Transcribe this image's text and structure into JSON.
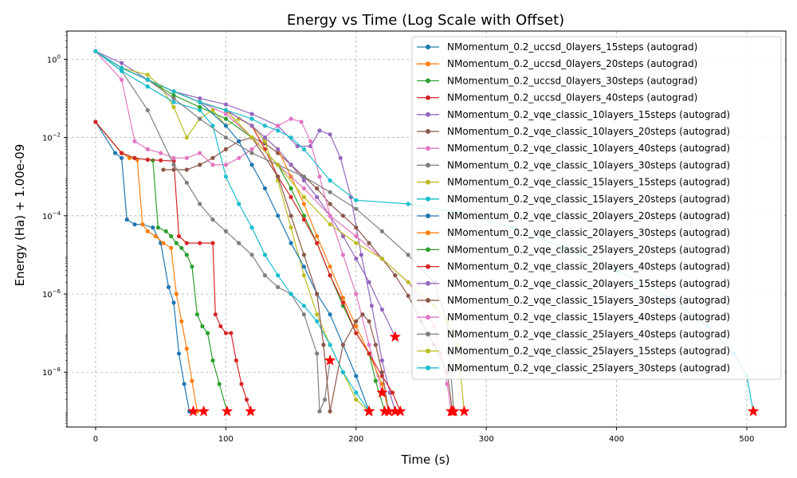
{
  "chart_data": {
    "type": "line",
    "title": "Energy vs Time (Log Scale with Offset)",
    "xlabel": "Time (s)",
    "ylabel": "Energy (Ha) + 1.00e-09",
    "xlim": [
      -22,
      530
    ],
    "ylim_log10": [
      -9.4,
      0.72
    ],
    "x_ticks": [
      0,
      100,
      200,
      300,
      400,
      500
    ],
    "y_ticks": [
      {
        "exp": 0,
        "label": "10",
        "sup": "0"
      },
      {
        "exp": -2,
        "label": "10",
        "sup": "−2"
      },
      {
        "exp": -4,
        "label": "10",
        "sup": "−4"
      },
      {
        "exp": -6,
        "label": "10",
        "sup": "−6"
      },
      {
        "exp": -8,
        "label": "10",
        "sup": "−8"
      }
    ],
    "y_scale": "log",
    "grid": true,
    "legend_position": "upper right",
    "end_marker": "red star",
    "series": [
      {
        "name": "NMomentum_0.2_uccsd_0layers_15steps (autograd)",
        "color": "#1f77b4",
        "x": [
          0,
          15,
          20,
          24,
          30,
          36,
          44,
          50,
          56,
          60,
          64,
          68,
          72,
          75
        ],
        "y": [
          0.025,
          0.004,
          0.003,
          8e-05,
          6e-05,
          6e-05,
          5e-05,
          2e-05,
          1.5e-06,
          6e-07,
          3e-08,
          5e-09,
          1e-09,
          1e-09
        ]
      },
      {
        "name": "NMomentum_0.2_uccsd_0layers_20steps (autograd)",
        "color": "#ff7f0e",
        "x": [
          0,
          20,
          26,
          32,
          36,
          40,
          46,
          52,
          58,
          62,
          66,
          70,
          74,
          78,
          83
        ],
        "y": [
          0.025,
          0.004,
          0.003,
          0.0027,
          6e-05,
          4e-05,
          3e-05,
          2e-05,
          1.5e-05,
          1e-06,
          2e-07,
          4e-08,
          6e-09,
          1e-09,
          1e-09
        ]
      },
      {
        "name": "NMomentum_0.2_uccsd_0layers_30steps (autograd)",
        "color": "#2ca02c",
        "x": [
          0,
          20,
          30,
          40,
          44,
          48,
          54,
          58,
          62,
          66,
          70,
          74,
          78,
          82,
          86,
          90,
          95,
          101
        ],
        "y": [
          0.025,
          0.004,
          0.003,
          0.0027,
          0.0026,
          5e-05,
          4e-05,
          3e-05,
          2e-05,
          1.5e-05,
          1e-05,
          5e-06,
          3e-07,
          1.5e-07,
          1e-07,
          2e-08,
          5e-09,
          1e-09
        ]
      },
      {
        "name": "NMomentum_0.2_uccsd_0layers_40steps (autograd)",
        "color": "#d62728",
        "x": [
          0,
          20,
          30,
          40,
          50,
          60,
          64,
          70,
          80,
          90,
          92,
          96,
          100,
          104,
          108,
          112,
          116,
          119
        ],
        "y": [
          0.025,
          0.004,
          0.003,
          0.0027,
          0.0026,
          0.0025,
          3e-05,
          2e-05,
          2e-05,
          2e-05,
          3e-07,
          1.5e-07,
          1e-07,
          1e-07,
          2e-08,
          5e-09,
          2e-09,
          1e-09
        ]
      },
      {
        "name": "NMomentum_0.2_vqe_classic_10layers_15steps (autograd)",
        "color": "#9467bd",
        "x": [
          0,
          20,
          40,
          60,
          80,
          100,
          120,
          140,
          155,
          165,
          172,
          180,
          188,
          196,
          204,
          212,
          220,
          226,
          230
        ],
        "y": [
          1.6,
          0.8,
          0.3,
          0.15,
          0.1,
          0.07,
          0.04,
          0.02,
          0.006,
          0.006,
          0.015,
          0.012,
          0.003,
          0.0003,
          1e-05,
          5e-07,
          2e-08,
          3e-09,
          1e-09
        ]
      },
      {
        "name": "NMomentum_0.2_vqe_classic_10layers_20steps (autograd)",
        "color": "#8c564b",
        "x": [
          52,
          60,
          70,
          80,
          90,
          100,
          110,
          120,
          130,
          140,
          150,
          160,
          170,
          180,
          190,
          200,
          210,
          220,
          230,
          240,
          250,
          260,
          270,
          274
        ],
        "y": [
          0.0015,
          0.0015,
          0.0015,
          0.002,
          0.003,
          0.005,
          0.008,
          0.01,
          0.007,
          0.004,
          0.002,
          0.001,
          0.0005,
          0.0002,
          0.0001,
          5e-05,
          2e-05,
          8e-06,
          3e-06,
          9e-07,
          2e-07,
          5e-08,
          1e-08,
          1e-09
        ]
      },
      {
        "name": "NMomentum_0.2_vqe_classic_10layers_40steps (autograd)",
        "color": "#e377c2",
        "x": [
          0,
          20,
          30,
          40,
          50,
          60,
          70,
          80,
          90,
          100,
          110,
          120,
          130,
          140,
          150,
          158,
          165,
          172,
          180,
          190,
          200,
          210,
          220
        ],
        "y": [
          1.6,
          0.3,
          0.008,
          0.005,
          0.004,
          0.003,
          0.003,
          0.004,
          0.002,
          0.002,
          0.003,
          0.005,
          0.01,
          0.02,
          0.03,
          0.025,
          0.008,
          0.001,
          0.0001,
          1e-05,
          1e-06,
          5e-08,
          3e-09
        ]
      },
      {
        "name": "NMomentum_0.2_vqe_classic_10layers_30steps (autograd)",
        "color": "#7f7f7f",
        "x": [
          0,
          20,
          40,
          60,
          70,
          80,
          90,
          100,
          110,
          120,
          130,
          140,
          150,
          160,
          170,
          172,
          176,
          180
        ],
        "y": [
          1.6,
          0.5,
          0.05,
          0.002,
          0.0007,
          0.0002,
          8e-05,
          4e-05,
          2e-05,
          1e-05,
          3e-06,
          1.5e-06,
          1e-06,
          3e-07,
          3e-08,
          1e-09,
          2e-09,
          2e-08
        ]
      },
      {
        "name": "NMomentum_0.2_vqe_classic_15layers_15steps (autograd)",
        "color": "#bcbd22",
        "x": [
          0,
          20,
          40,
          50,
          60,
          70,
          80,
          90,
          100,
          110,
          120,
          130,
          140,
          150,
          160,
          170,
          180,
          190,
          200,
          210
        ],
        "y": [
          1.6,
          0.6,
          0.4,
          0.2,
          0.06,
          0.01,
          0.03,
          0.05,
          0.02,
          0.03,
          0.02,
          0.008,
          0.0008,
          5e-05,
          3e-06,
          3e-07,
          5e-08,
          1e-08,
          2e-09,
          1e-09
        ]
      },
      {
        "name": "NMomentum_0.2_vqe_classic_15layers_20steps (autograd)",
        "color": "#17becf",
        "x": [
          0,
          20,
          40,
          60,
          80,
          90,
          100,
          110,
          120,
          130,
          140,
          150,
          160,
          170,
          180,
          190,
          200,
          210
        ],
        "y": [
          1.6,
          0.5,
          0.2,
          0.08,
          0.05,
          0.02,
          0.001,
          0.0002,
          5e-05,
          1e-05,
          3e-06,
          1e-06,
          5e-07,
          2e-07,
          5e-08,
          1e-08,
          3e-09,
          1e-09
        ]
      },
      {
        "name": "NMomentum_0.2_vqe_classic_20layers_20steps (autograd)",
        "color": "#1f77b4",
        "x": [
          0,
          20,
          40,
          60,
          80,
          100,
          110,
          120,
          130,
          140,
          150,
          160,
          170,
          180,
          190,
          200,
          210
        ],
        "y": [
          1.6,
          0.6,
          0.3,
          0.15,
          0.08,
          0.02,
          0.008,
          0.002,
          0.0005,
          0.0001,
          2e-05,
          5e-06,
          1e-06,
          3e-07,
          5e-08,
          8e-09,
          1e-09
        ]
      },
      {
        "name": "NMomentum_0.2_vqe_classic_20layers_30steps (autograd)",
        "color": "#ff7f0e",
        "x": [
          0,
          20,
          40,
          60,
          80,
          100,
          120,
          140,
          150,
          160,
          170,
          180,
          190,
          200,
          210,
          220,
          225
        ],
        "y": [
          1.6,
          0.6,
          0.3,
          0.15,
          0.08,
          0.05,
          0.02,
          0.005,
          0.001,
          0.0002,
          3e-05,
          5e-06,
          8e-07,
          1.5e-07,
          3e-08,
          5e-09,
          1e-09
        ]
      },
      {
        "name": "NMomentum_0.2_vqe_classic_25layers_20steps (autograd)",
        "color": "#2ca02c",
        "x": [
          0,
          20,
          40,
          60,
          80,
          100,
          120,
          140,
          150,
          160,
          170,
          180,
          190,
          200,
          210,
          215,
          222
        ],
        "y": [
          1.6,
          0.6,
          0.3,
          0.12,
          0.06,
          0.03,
          0.01,
          0.002,
          0.0005,
          0.0001,
          2e-05,
          3e-06,
          5e-07,
          1e-07,
          3e-08,
          6e-09,
          1e-09
        ]
      },
      {
        "name": "NMomentum_0.2_vqe_classic_20layers_40steps (autograd)",
        "color": "#d62728",
        "x": [
          0,
          20,
          40,
          60,
          80,
          100,
          120,
          130,
          140,
          150,
          160,
          170,
          180,
          190,
          200,
          210,
          220,
          228,
          234
        ],
        "y": [
          1.6,
          0.6,
          0.3,
          0.15,
          0.08,
          0.05,
          0.02,
          0.005,
          0.001,
          0.0003,
          8e-05,
          2e-05,
          3e-06,
          6e-07,
          1e-07,
          3e-08,
          8e-09,
          3e-09,
          1e-09
        ]
      },
      {
        "name": "NMomentum_0.2_vqe_classic_20layers_15steps (autograd)",
        "color": "#9467bd",
        "x": [
          0,
          20,
          40,
          60,
          80,
          100,
          120,
          130,
          140,
          150,
          160,
          170,
          180,
          190,
          200,
          210,
          220,
          230
        ],
        "y": [
          1.6,
          0.6,
          0.3,
          0.15,
          0.08,
          0.05,
          0.02,
          0.01,
          0.005,
          0.002,
          0.0008,
          0.0003,
          0.0001,
          3e-05,
          8e-06,
          2e-06,
          4e-07,
          8e-08
        ]
      },
      {
        "name": "NMomentum_0.2_vqe_classic_15layers_30steps (autograd)",
        "color": "#8c564b",
        "x": [
          0,
          20,
          40,
          60,
          80,
          100,
          120,
          140,
          150,
          160,
          170,
          175,
          180,
          190,
          200,
          205,
          210,
          215,
          220,
          225
        ],
        "y": [
          1.6,
          0.6,
          0.3,
          0.15,
          0.08,
          0.05,
          0.01,
          0.001,
          0.0001,
          1e-05,
          1e-06,
          5e-08,
          1e-09,
          5e-08,
          2e-07,
          3e-07,
          2e-07,
          5e-08,
          1e-08,
          1e-09
        ]
      },
      {
        "name": "NMomentum_0.2_vqe_classic_15layers_40steps (autograd)",
        "color": "#e377c2",
        "x": [
          0,
          20,
          40,
          60,
          80,
          100,
          120,
          140,
          160,
          180,
          200,
          220,
          240,
          250,
          260,
          265,
          270,
          273
        ],
        "y": [
          1.6,
          0.6,
          0.3,
          0.15,
          0.08,
          0.04,
          0.01,
          0.002,
          0.0005,
          0.0001,
          3e-05,
          8e-06,
          2e-06,
          7e-07,
          1.5e-07,
          3e-08,
          5e-09,
          1e-09
        ]
      },
      {
        "name": "NMomentum_0.2_vqe_classic_25layers_40steps (autograd)",
        "color": "#7f7f7f",
        "x": [
          0,
          20,
          40,
          60,
          80,
          100,
          120,
          140,
          160,
          180,
          200,
          220,
          240,
          260,
          270,
          275
        ],
        "y": [
          1.6,
          0.6,
          0.3,
          0.1,
          0.03,
          0.01,
          0.004,
          0.002,
          0.001,
          0.0004,
          0.00015,
          4e-05,
          1e-05,
          2e-06,
          2e-07,
          1e-09
        ]
      },
      {
        "name": "NMomentum_0.2_vqe_classic_25layers_15steps (autograd)",
        "color": "#bcbd22",
        "x": [
          0,
          20,
          40,
          60,
          80,
          100,
          120,
          140,
          160,
          180,
          200,
          220,
          240,
          260,
          270,
          278,
          283
        ],
        "y": [
          1.6,
          0.6,
          0.3,
          0.15,
          0.08,
          0.05,
          0.01,
          0.002,
          0.0003,
          6e-05,
          2e-05,
          8e-06,
          2e-06,
          5e-07,
          2e-07,
          5e-08,
          1e-09
        ]
      },
      {
        "name": "NMomentum_0.2_vqe_classic_25layers_30steps (autograd)",
        "color": "#17becf",
        "x": [
          0,
          20,
          40,
          60,
          80,
          100,
          120,
          130,
          140,
          150,
          160,
          180,
          200,
          240,
          280,
          320,
          360,
          400,
          440,
          470,
          490,
          500,
          505
        ],
        "y": [
          1.6,
          0.6,
          0.3,
          0.15,
          0.08,
          0.05,
          0.03,
          0.02,
          0.015,
          0.01,
          0.005,
          0.0008,
          0.00025,
          0.0002,
          0.00012,
          5e-05,
          1.5e-05,
          4e-06,
          8e-07,
          1.5e-07,
          3e-08,
          8e-09,
          1e-09
        ]
      }
    ]
  }
}
